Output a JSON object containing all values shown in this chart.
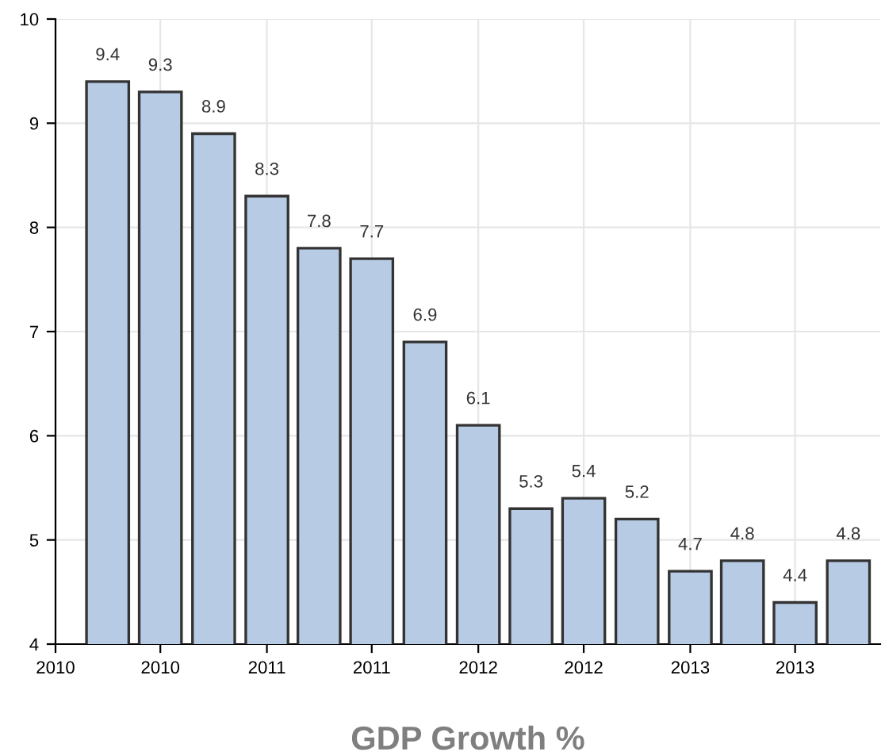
{
  "chart_data": {
    "type": "bar",
    "xlabel": "GDP Growth %",
    "x": [
      "2010-04",
      "2010-07",
      "2010-10",
      "2011-01",
      "2011-04",
      "2011-07",
      "2011-10",
      "2012-01",
      "2012-04",
      "2012-07",
      "2012-10",
      "2013-01",
      "2013-04",
      "2013-07",
      "2013-10"
    ],
    "values": [
      9.4,
      9.3,
      8.9,
      8.3,
      7.8,
      7.7,
      6.9,
      6.1,
      5.3,
      5.4,
      5.2,
      4.7,
      4.8,
      4.4,
      4.8
    ],
    "color": "#b7cbe4",
    "data_labels": true,
    "grid": true,
    "xlim": [
      "2010-01",
      "2013-11-25"
    ],
    "xticks": [
      {
        "value": "2010-01",
        "label": "2010"
      },
      {
        "value": "2010-07",
        "label": "2010"
      },
      {
        "value": "2011-01",
        "label": "2011"
      },
      {
        "value": "2011-07",
        "label": "2011"
      },
      {
        "value": "2012-01",
        "label": "2012"
      },
      {
        "value": "2012-07",
        "label": "2012"
      },
      {
        "value": "2013-01",
        "label": "2013"
      },
      {
        "value": "2013-07",
        "label": "2013"
      }
    ],
    "ylim": [
      4,
      10
    ],
    "yticks": [
      4,
      5,
      6,
      7,
      8,
      9,
      10
    ]
  }
}
